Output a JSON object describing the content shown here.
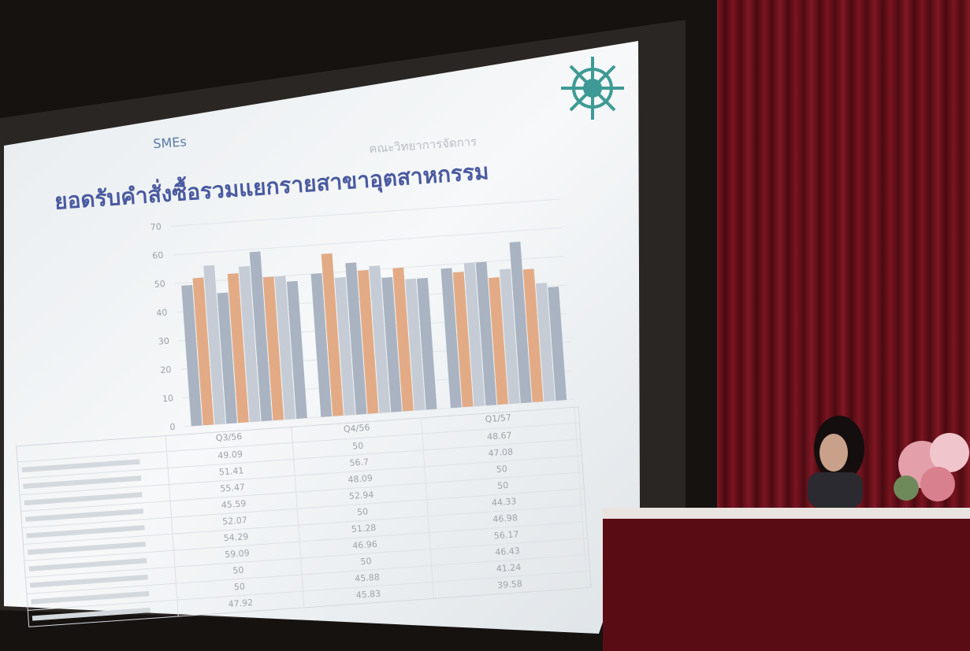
{
  "header": {
    "subtitle": "SMEs",
    "faculty": "คณะวิทยาการจัดการ"
  },
  "chart_data": {
    "type": "bar",
    "title": "ยอดรับคำสั่งซื้อรวมแยกรายสาขาอุตสาหกรรม",
    "categories": [
      "Q3/56",
      "Q4/56",
      "Q1/57"
    ],
    "ylim": [
      0,
      70
    ],
    "yticks": [
      0,
      10,
      20,
      30,
      40,
      50,
      60,
      70
    ],
    "grid": true,
    "series": [
      {
        "color": "#aab3c1",
        "values": [
          49.09,
          50,
          48.67
        ]
      },
      {
        "color": "#e2ab86",
        "values": [
          51.41,
          56.7,
          47.08
        ]
      },
      {
        "color": "#c5ccd6",
        "values": [
          55.47,
          48.09,
          50
        ]
      },
      {
        "color": "#aab3c1",
        "values": [
          45.59,
          52.94,
          50
        ]
      },
      {
        "color": "#e2ab86",
        "values": [
          52.07,
          50,
          44.33
        ]
      },
      {
        "color": "#c5ccd6",
        "values": [
          54.29,
          51.28,
          46.98
        ]
      },
      {
        "color": "#aab3c1",
        "values": [
          59.09,
          46.96,
          56.17
        ]
      },
      {
        "color": "#e2ab86",
        "values": [
          50,
          50,
          46.43
        ]
      },
      {
        "color": "#c5ccd6",
        "values": [
          50,
          45.88,
          41.24
        ]
      },
      {
        "color": "#aab3c1",
        "values": [
          47.92,
          45.83,
          39.58
        ]
      }
    ]
  }
}
